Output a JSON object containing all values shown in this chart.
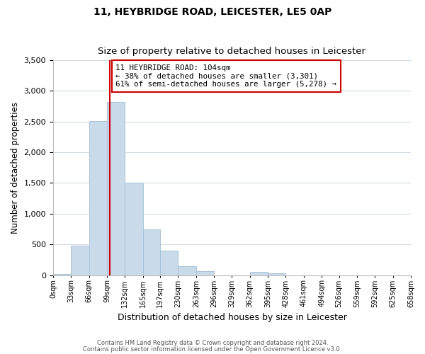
{
  "title": "11, HEYBRIDGE ROAD, LEICESTER, LE5 0AP",
  "subtitle": "Size of property relative to detached houses in Leicester",
  "xlabel": "Distribution of detached houses by size in Leicester",
  "ylabel": "Number of detached properties",
  "bar_color": "#c9daea",
  "bar_edge_color": "#a8c4d8",
  "vline_color": "#cc0000",
  "vline_x": 104,
  "grid_color": "#d0dde8",
  "annotation_box_color": "#cc0000",
  "annotation_line1": "11 HEYBRIDGE ROAD: 104sqm",
  "annotation_line2": "← 38% of detached houses are smaller (3,301)",
  "annotation_line3": "61% of semi-detached houses are larger (5,278) →",
  "footnote1": "Contains HM Land Registry data © Crown copyright and database right 2024.",
  "footnote2": "Contains public sector information licensed under the Open Government Licence v3.0.",
  "bin_edges": [
    0,
    33,
    66,
    99,
    132,
    165,
    197,
    230,
    263,
    296,
    329,
    362,
    395,
    428,
    461,
    494,
    526,
    559,
    592,
    625,
    658
  ],
  "bin_labels": [
    "0sqm",
    "33sqm",
    "66sqm",
    "99sqm",
    "132sqm",
    "165sqm",
    "197sqm",
    "230sqm",
    "263sqm",
    "296sqm",
    "329sqm",
    "362sqm",
    "395sqm",
    "428sqm",
    "461sqm",
    "494sqm",
    "526sqm",
    "559sqm",
    "592sqm",
    "625sqm",
    "658sqm"
  ],
  "bar_heights": [
    20,
    480,
    2510,
    2820,
    1510,
    750,
    400,
    150,
    70,
    0,
    0,
    50,
    30,
    0,
    0,
    0,
    0,
    0,
    0,
    0
  ],
  "ylim": [
    0,
    3500
  ],
  "yticks": [
    0,
    500,
    1000,
    1500,
    2000,
    2500,
    3000,
    3500
  ],
  "background_color": "#ffffff",
  "title_fontsize": 10,
  "subtitle_fontsize": 9.5
}
